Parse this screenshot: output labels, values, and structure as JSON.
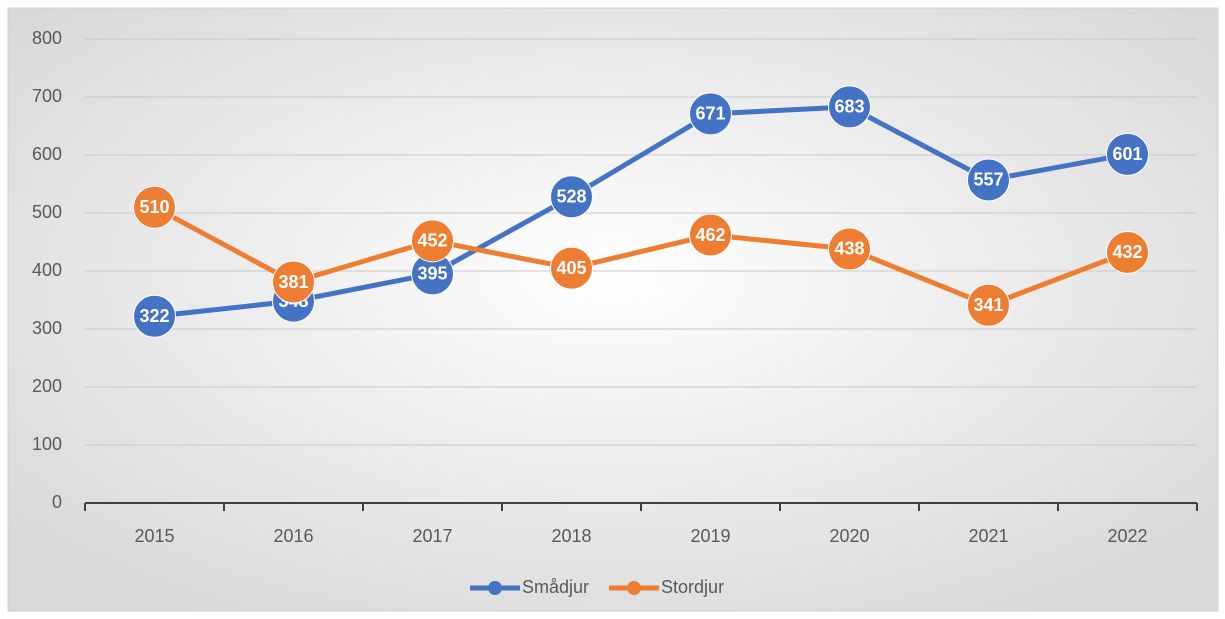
{
  "chart_data": {
    "type": "line",
    "categories": [
      "2015",
      "2016",
      "2017",
      "2018",
      "2019",
      "2020",
      "2021",
      "2022"
    ],
    "series": [
      {
        "name": "Smådjur",
        "color": "#4472c4",
        "values": [
          322,
          348,
          395,
          528,
          671,
          683,
          557,
          601
        ]
      },
      {
        "name": "Stordjur",
        "color": "#ed7d31",
        "values": [
          510,
          381,
          452,
          405,
          462,
          438,
          341,
          432
        ]
      }
    ],
    "ylim": [
      0,
      800
    ],
    "yticks": [
      0,
      100,
      200,
      300,
      400,
      500,
      600,
      700,
      800
    ],
    "grid": true,
    "legend": "bottom",
    "data_labels": true
  }
}
